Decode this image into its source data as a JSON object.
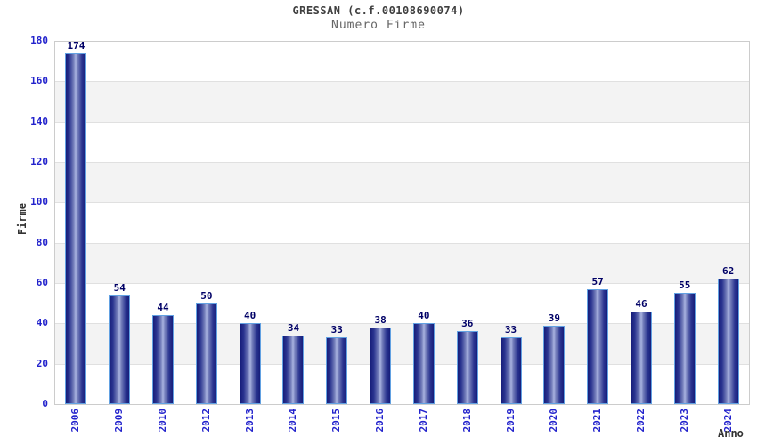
{
  "page": {
    "title": "GRESSAN (c.f.00108690074)",
    "subtitle": "Numero Firme"
  },
  "chart_data": {
    "type": "bar",
    "title": "GRESSAN (c.f.00108690074)",
    "subtitle": "Numero Firme",
    "xlabel": "Anno",
    "ylabel": "Firme",
    "categories": [
      "2006",
      "2009",
      "2010",
      "2012",
      "2013",
      "2014",
      "2015",
      "2016",
      "2017",
      "2018",
      "2019",
      "2020",
      "2021",
      "2022",
      "2023",
      "2024"
    ],
    "values": [
      174,
      54,
      44,
      50,
      40,
      34,
      33,
      38,
      40,
      36,
      33,
      39,
      57,
      46,
      55,
      62
    ],
    "ylim": [
      0,
      180
    ],
    "ytick_interval": 20,
    "ytick_labels": [
      "0",
      "20",
      "40",
      "60",
      "80",
      "100",
      "120",
      "140",
      "160",
      "180"
    ],
    "grid": true,
    "alternating_bands": true,
    "legend": "none",
    "colors": {
      "tick_label_blue": "#2222cc",
      "value_label_navy": "#000066",
      "bar_dark": "#161d7a",
      "bar_light": "#a9b3e0",
      "bar_border": "#62a1e2",
      "band_gray": "#f3f3f3",
      "gridline_gray": "#e0e0e0",
      "plot_border_gray": "#cccccc",
      "title_color": "#404040",
      "subtitle_color": "#666666",
      "axis_title_color": "#333333"
    }
  }
}
